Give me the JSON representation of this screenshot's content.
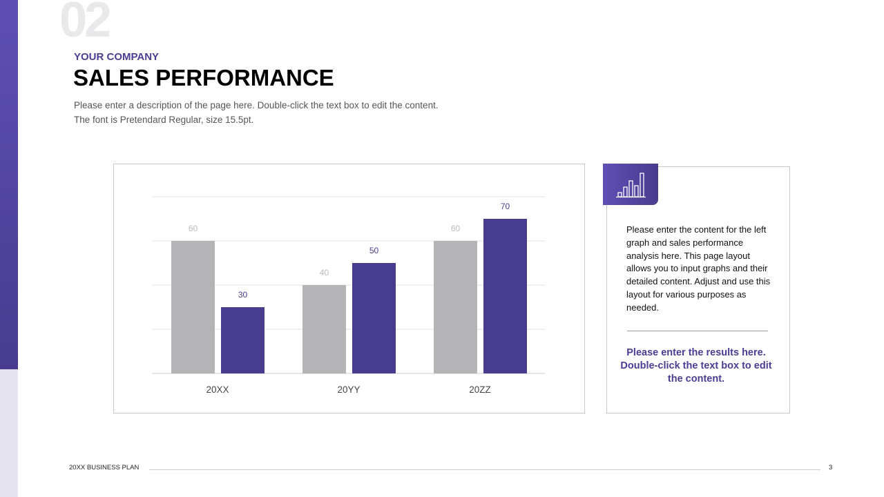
{
  "slide": {
    "section_number": "02",
    "company": "YOUR COMPANY",
    "title": "SALES PERFORMANCE",
    "description_line1": "Please enter a description of the page here. Double-click the text box to edit the content.",
    "description_line2": "The font is Pretendard Regular, size 15.5pt."
  },
  "card": {
    "icon": "bar-chart-icon",
    "text": "Please enter the content for the left graph and sales performance analysis here. This page layout allows you to input graphs and their detailed content. Adjust and use this layout for various purposes as needed.",
    "result": "Please enter the results here. Double-click the text box to edit the content."
  },
  "footer": {
    "label": "20XX BUSINESS PLAN",
    "page": "3"
  },
  "colors": {
    "accent": "#483c8e",
    "gray_series": "#b4b4b6"
  },
  "chart_data": {
    "type": "bar",
    "categories": [
      "20XX",
      "20YY",
      "20ZZ"
    ],
    "series": [
      {
        "values": [
          60,
          40,
          60
        ],
        "color": "#b4b4b6"
      },
      {
        "values": [
          30,
          50,
          70
        ],
        "color": "#483c8e"
      }
    ],
    "ylim": [
      0,
      80
    ],
    "yticks": [
      0,
      20,
      40,
      60,
      80
    ],
    "grid": true,
    "data_labels": true
  }
}
